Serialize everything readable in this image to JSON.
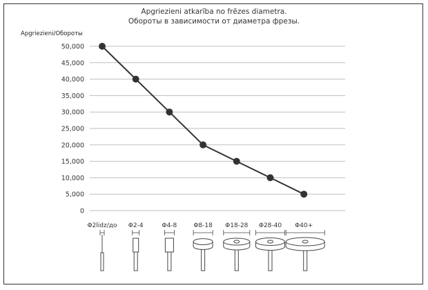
{
  "chart_data": {
    "type": "line",
    "title_line1": "Apgriezieni atkarība no frēzes diametra.",
    "title_line2": "Обороты в зависимости от диаметра фрезы.",
    "ylabel": "Apgriezieni/Обороты",
    "xlabel": "",
    "categories": [
      "Φ2lidz/до",
      "Φ2-4",
      "Φ4-8",
      "Φ8-18",
      "Φ18-28",
      "Φ28-40",
      "Φ40+"
    ],
    "values": [
      50000,
      40000,
      30000,
      20000,
      15000,
      10000,
      5000
    ],
    "yticks": [
      "0",
      "5,000",
      "10,000",
      "15,000",
      "20,000",
      "25,000",
      "30,000",
      "35,000",
      "40,000",
      "45,000",
      "50,000"
    ],
    "ylim": [
      0,
      50000
    ],
    "grid": true,
    "line_color": "#333333",
    "marker_color": "#333333"
  }
}
